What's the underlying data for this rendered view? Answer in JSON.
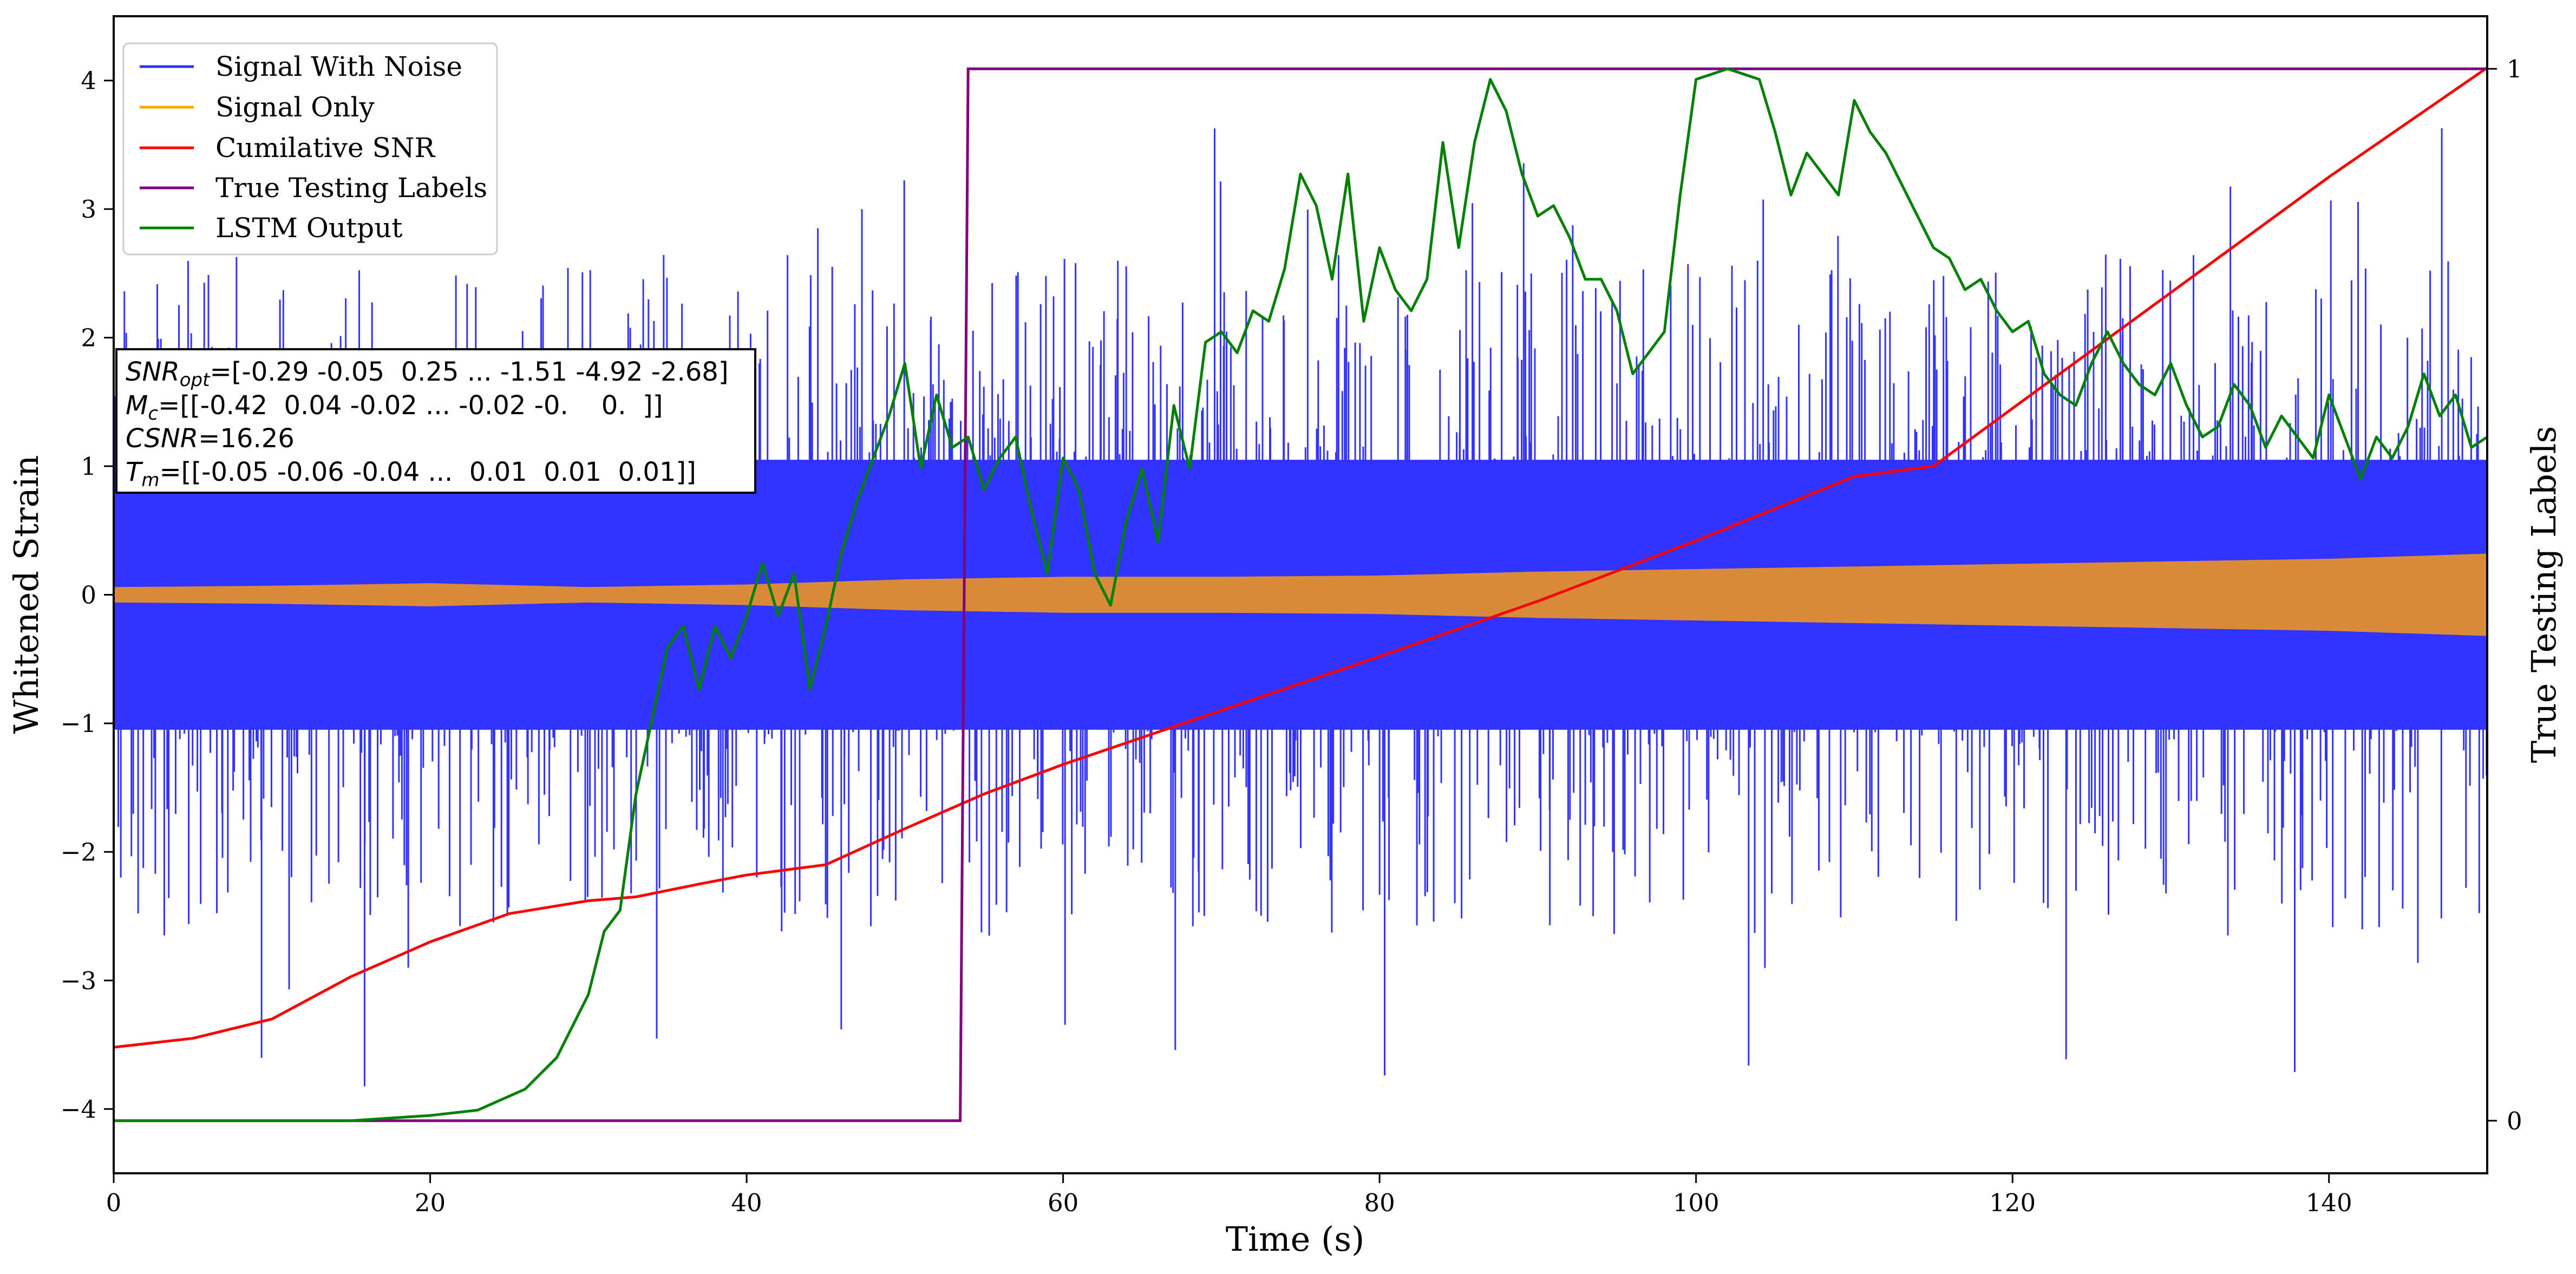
{
  "chart_data": {
    "type": "line",
    "title": "",
    "xlabel": "Time (s)",
    "ylabel": "Whitened Strain",
    "y2label": "True Testing Labels",
    "xlim": [
      0,
      150
    ],
    "ylim": [
      -4.5,
      4.5
    ],
    "y2lim": [
      -0.05,
      1.05
    ],
    "x_ticks": [
      0,
      20,
      40,
      60,
      80,
      100,
      120,
      140
    ],
    "y_ticks": [
      -4,
      -3,
      -2,
      -1,
      0,
      1,
      2,
      3,
      4
    ],
    "y2_ticks": [
      0,
      1
    ],
    "grid": false,
    "legend_position": "top-left",
    "colors": {
      "noise": "#3333ff",
      "signal": "#d98b3a",
      "csnr": "#ff0000",
      "labels": "#800080",
      "lstm": "#008000"
    },
    "legend": [
      {
        "label": "Signal With Noise",
        "color": "#3333ff"
      },
      {
        "label": "Signal Only",
        "color": "#ffa500"
      },
      {
        "label": "Cumilative SNR",
        "color": "#ff0000"
      },
      {
        "label": "True Testing Labels",
        "color": "#800080"
      },
      {
        "label": "LSTM Output",
        "color": "#008000"
      }
    ],
    "series": [
      {
        "name": "Signal With Noise",
        "axis": "left",
        "kind": "noise_band",
        "x": [
          0,
          150
        ],
        "envelope": {
          "lower": -2.0,
          "upper": 2.0,
          "min": -3.9,
          "max": 3.7
        }
      },
      {
        "name": "Signal Only",
        "axis": "left",
        "kind": "band",
        "x": [
          0,
          10,
          20,
          30,
          40,
          50,
          60,
          70,
          80,
          90,
          100,
          110,
          120,
          130,
          140,
          150
        ],
        "amplitude": [
          0.06,
          0.07,
          0.09,
          0.06,
          0.08,
          0.12,
          0.14,
          0.14,
          0.15,
          0.18,
          0.2,
          0.22,
          0.24,
          0.26,
          0.28,
          0.32
        ]
      },
      {
        "name": "Cumilative SNR",
        "axis": "left",
        "x": [
          0,
          5,
          10,
          15,
          20,
          25,
          30,
          33,
          37,
          40,
          45,
          50,
          55,
          60,
          70,
          80,
          90,
          100,
          110,
          115,
          120,
          130,
          140,
          150
        ],
        "y": [
          -3.52,
          -3.45,
          -3.3,
          -2.97,
          -2.7,
          -2.48,
          -2.38,
          -2.35,
          -2.25,
          -2.18,
          -2.1,
          -1.82,
          -1.55,
          -1.32,
          -0.9,
          -0.48,
          -0.05,
          0.42,
          0.92,
          1.0,
          1.45,
          2.35,
          3.25,
          4.1
        ]
      },
      {
        "name": "True Testing Labels",
        "axis": "right",
        "x": [
          0,
          53.5,
          54,
          150
        ],
        "y": [
          0,
          0,
          1,
          1
        ]
      },
      {
        "name": "LSTM Output",
        "axis": "right",
        "x": [
          0,
          15,
          20,
          23,
          26,
          28,
          30,
          31,
          32,
          33,
          34,
          35,
          36,
          37,
          38,
          39,
          40,
          41,
          42,
          43,
          44,
          45,
          46,
          47,
          48,
          49,
          50,
          51,
          52,
          53,
          54,
          55,
          56,
          57,
          58,
          59,
          60,
          61,
          62,
          63,
          64,
          65,
          66,
          67,
          68,
          69,
          70,
          71,
          72,
          73,
          74,
          75,
          76,
          77,
          78,
          79,
          80,
          81,
          82,
          83,
          84,
          85,
          86,
          87,
          88,
          89,
          90,
          91,
          92,
          93,
          94,
          95,
          96,
          97,
          98,
          99,
          100,
          102,
          104,
          105,
          106,
          107,
          108,
          109,
          110,
          111,
          112,
          113,
          114,
          115,
          116,
          117,
          118,
          119,
          120,
          121,
          122,
          123,
          124,
          125,
          126,
          127,
          128,
          129,
          130,
          131,
          132,
          133,
          134,
          135,
          136,
          137,
          138,
          139,
          140,
          141,
          142,
          143,
          144,
          145,
          146,
          147,
          148,
          149,
          150
        ],
        "y": [
          0.0,
          0.0,
          0.005,
          0.01,
          0.03,
          0.06,
          0.12,
          0.18,
          0.2,
          0.31,
          0.38,
          0.45,
          0.47,
          0.41,
          0.47,
          0.44,
          0.48,
          0.53,
          0.48,
          0.52,
          0.41,
          0.47,
          0.54,
          0.59,
          0.63,
          0.67,
          0.72,
          0.62,
          0.69,
          0.64,
          0.65,
          0.6,
          0.63,
          0.65,
          0.58,
          0.52,
          0.63,
          0.6,
          0.52,
          0.49,
          0.57,
          0.62,
          0.55,
          0.68,
          0.62,
          0.74,
          0.75,
          0.73,
          0.77,
          0.76,
          0.81,
          0.9,
          0.87,
          0.8,
          0.9,
          0.76,
          0.83,
          0.79,
          0.77,
          0.8,
          0.93,
          0.83,
          0.93,
          0.99,
          0.96,
          0.9,
          0.86,
          0.87,
          0.84,
          0.8,
          0.8,
          0.77,
          0.71,
          0.73,
          0.75,
          0.88,
          0.99,
          1.0,
          0.99,
          0.94,
          0.88,
          0.92,
          0.9,
          0.88,
          0.97,
          0.94,
          0.92,
          0.89,
          0.86,
          0.83,
          0.82,
          0.79,
          0.8,
          0.77,
          0.75,
          0.76,
          0.71,
          0.69,
          0.68,
          0.72,
          0.75,
          0.72,
          0.7,
          0.69,
          0.72,
          0.68,
          0.65,
          0.66,
          0.7,
          0.68,
          0.64,
          0.67,
          0.65,
          0.63,
          0.69,
          0.65,
          0.61,
          0.65,
          0.63,
          0.66,
          0.71,
          0.67,
          0.69,
          0.64,
          0.65
        ]
      }
    ],
    "annotations": [
      {
        "symbol": "SNR",
        "subscript": "opt",
        "value": "=[-0.29 -0.05  0.25 ... -1.51 -4.92 -2.68]"
      },
      {
        "symbol": "M",
        "subscript": "c",
        "value": "=[[-0.42  0.04 -0.02 ... -0.02 -0.    0.  ]]"
      },
      {
        "symbol": "CSNR",
        "subscript": "",
        "value": "=16.26"
      },
      {
        "symbol": "T",
        "subscript": "m",
        "value": "=[[-0.05 -0.06 -0.04 ...  0.01  0.01  0.01]]"
      }
    ]
  }
}
